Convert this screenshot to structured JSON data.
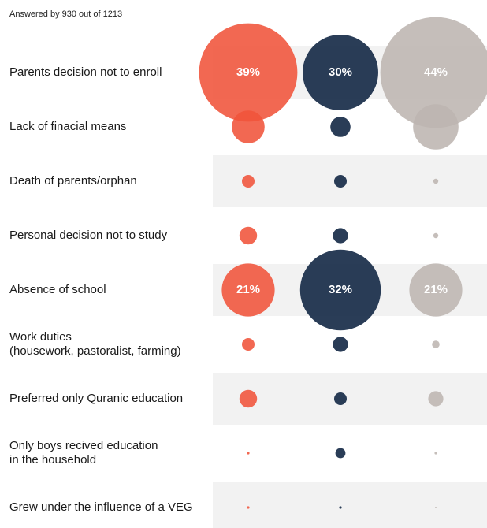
{
  "chart_data": {
    "type": "bubble-matrix",
    "subtitle": "Answered by 930 out of 1213",
    "categories": [
      "Parents decision not to enroll",
      "Lack of finacial means",
      "Death of parents/orphan",
      "Personal decision not to study",
      "Absence of school",
      "Work duties\n(housework, pastoralist, farming)",
      "Preferred only Quranic education",
      "Only boys recived education\nin the household",
      "Grew under the influence of a VEG"
    ],
    "series": [
      {
        "color": "#f0533a",
        "values": [
          39,
          13,
          5,
          7,
          21,
          5,
          7,
          1,
          1
        ],
        "value_labels": [
          "39%",
          null,
          null,
          null,
          "21%",
          null,
          null,
          null,
          null
        ]
      },
      {
        "color": "#0d2240",
        "values": [
          30,
          8,
          5,
          6,
          32,
          6,
          5,
          4,
          1
        ],
        "value_labels": [
          "30%",
          null,
          null,
          null,
          "32%",
          null,
          null,
          null,
          null
        ]
      },
      {
        "color": "#bdb5b0",
        "values": [
          44,
          18,
          2,
          2,
          21,
          3,
          6,
          1,
          0
        ],
        "value_labels": [
          "44%",
          null,
          null,
          null,
          "21%",
          null,
          null,
          null,
          null
        ]
      }
    ]
  }
}
